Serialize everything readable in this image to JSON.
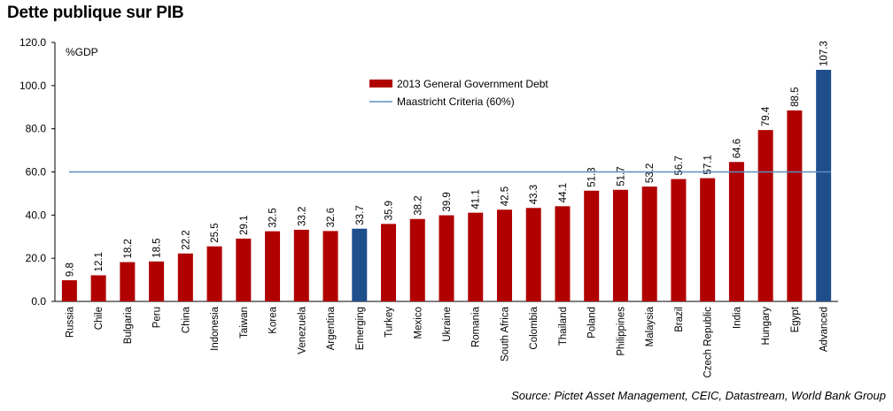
{
  "title": "Dette publique sur PIB",
  "source": "Source: Pictet Asset Management, CEIC, Datastream, World Bank Group",
  "colors": {
    "debt": "#b00000",
    "highlight": "#1f4e8c",
    "maastricht": "#5b8fbf",
    "axis": "#000000"
  },
  "chart_data": {
    "type": "bar",
    "ylabel": "%GDP",
    "ylim": [
      0,
      120
    ],
    "yticks": [
      "0.0",
      "20.0",
      "40.0",
      "60.0",
      "80.0",
      "100.0",
      "120.0"
    ],
    "grid": false,
    "legend_position": "top-center",
    "categories": [
      "Russia",
      "Chile",
      "Bulgaria",
      "Peru",
      "China",
      "Indonesia",
      "Taiwan",
      "Korea",
      "Venezuela",
      "Argentina",
      "Emerging",
      "Turkey",
      "Mexico",
      "Ukraine",
      "Romania",
      "South Africa",
      "Colombia",
      "Thailand",
      "Poland",
      "Philippines",
      "Malaysia",
      "Brazil",
      "Czech Republic",
      "India",
      "Hungary",
      "Egypt",
      "Advanced"
    ],
    "series": [
      {
        "name": "2013 General Government Debt",
        "values": [
          9.8,
          12.1,
          18.2,
          18.5,
          22.2,
          25.5,
          29.1,
          32.5,
          33.2,
          32.6,
          33.7,
          35.9,
          38.2,
          39.9,
          41.1,
          42.5,
          43.3,
          44.1,
          51.3,
          51.7,
          53.2,
          56.7,
          57.1,
          64.6,
          79.4,
          88.5,
          107.3
        ],
        "labels": [
          "9.8",
          "12.1",
          "18.2",
          "18.5",
          "22.2",
          "25.5",
          "29.1",
          "32.5",
          "33.2",
          "32.6",
          "33.7",
          "35.9",
          "38.2",
          "39.9",
          "41.1",
          "42.5",
          "43.3",
          "44.1",
          "51.3",
          "51.7",
          "53.2",
          "56.7",
          "57.1",
          "64.6",
          "79.4",
          "88.5",
          "107.3"
        ]
      }
    ],
    "highlighted": [
      "Emerging",
      "Advanced"
    ],
    "reference_line": {
      "name": "Maastricht Criteria (60%)",
      "value": 60
    }
  }
}
